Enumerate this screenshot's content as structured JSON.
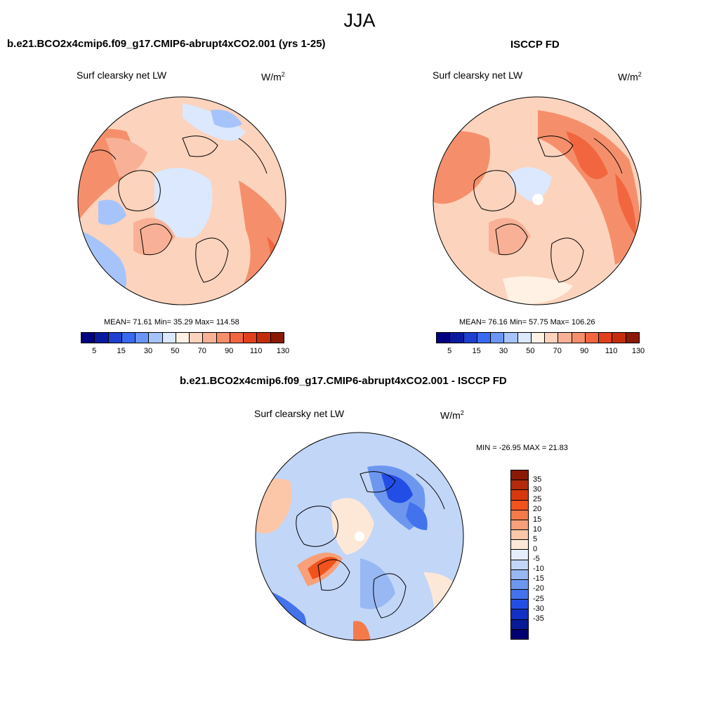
{
  "main_title": "JJA",
  "panels": {
    "model": {
      "title": "b.e21.BCO2x4cmip6.f09_g17.CMIP6-abrupt4xCO2.001 (yrs 1-25)",
      "var_label": "Surf clearsky net LW",
      "units_base": "W/m",
      "units_exp": "2",
      "stats": "MEAN=  71.61  Min=  35.29  Max= 114.58"
    },
    "obs": {
      "title": "ISCCP FD",
      "var_label": "Surf clearsky net LW",
      "units_base": "W/m",
      "units_exp": "2",
      "stats": "MEAN=  76.16  Min=  57.75  Max= 106.26"
    },
    "diff": {
      "title": "b.e21.BCO2x4cmip6.f09_g17.CMIP6-abrupt4xCO2.001 - ISCCP FD",
      "var_label": "Surf clearsky net LW",
      "units_base": "W/m",
      "units_exp": "2",
      "stats": "MIN = -26.95 MAX =  21.83"
    }
  },
  "colorbar_main": {
    "colors": [
      "#000080",
      "#0a1aa0",
      "#1f3fd0",
      "#3a6af0",
      "#6c96f5",
      "#a6c4fb",
      "#dbe8fd",
      "#fff1e4",
      "#fcd3bd",
      "#f8b196",
      "#f58f6b",
      "#f2663f",
      "#e0401c",
      "#c42d0c",
      "#8a1a06"
    ],
    "tick_labels": [
      "5",
      "15",
      "30",
      "50",
      "70",
      "90",
      "110",
      "130"
    ],
    "tick_boundaries": [
      1,
      3,
      5,
      7,
      9,
      11,
      13,
      15
    ]
  },
  "colorbar_diff": {
    "colors": [
      "#8a1a06",
      "#b42a0a",
      "#d8380e",
      "#f2521c",
      "#f57a4a",
      "#f8a07a",
      "#fbc7a8",
      "#fde8d8",
      "#e6eefb",
      "#c2d6f8",
      "#98b8f4",
      "#6d97ef",
      "#4373ec",
      "#234ee6",
      "#1230c4",
      "#081a96",
      "#000070"
    ],
    "tick_labels": [
      "35",
      "30",
      "25",
      "20",
      "15",
      "10",
      "5",
      "0",
      "-5",
      "-10",
      "-15",
      "-20",
      "-25",
      "-30",
      "-35"
    ]
  },
  "map_colors": {
    "model_bg": "#fcd3bd",
    "obs_bg": "#fcd3bd",
    "diff_bg": "#c2d6f8",
    "pole_hole": "#ffffff"
  }
}
